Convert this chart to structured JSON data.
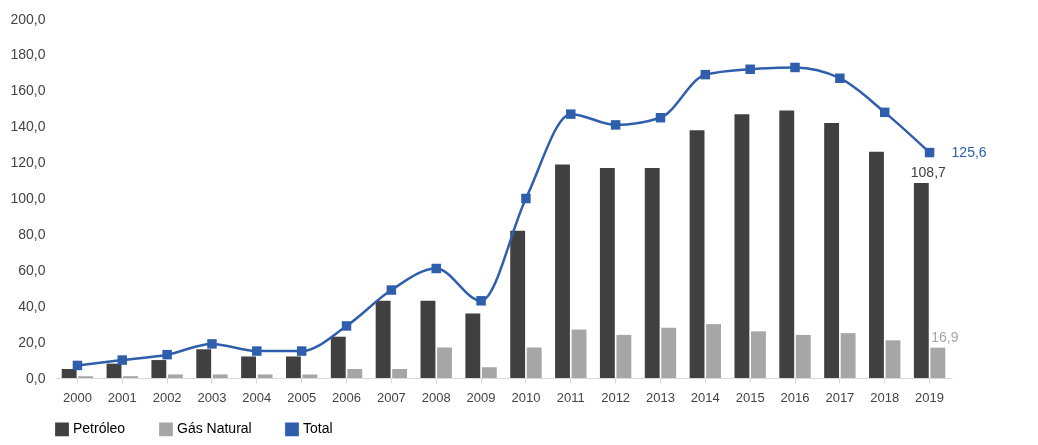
{
  "chart_data": {
    "type": "bar",
    "categories": [
      "2000",
      "2001",
      "2002",
      "2003",
      "2004",
      "2005",
      "2006",
      "2007",
      "2008",
      "2009",
      "2010",
      "2011",
      "2012",
      "2013",
      "2014",
      "2015",
      "2016",
      "2017",
      "2018",
      "2019"
    ],
    "series": [
      {
        "name": "Petróleo",
        "color": "#404040",
        "values": [
          5,
          8,
          10,
          16,
          12,
          12,
          23,
          43,
          43,
          36,
          82,
          119,
          117,
          117,
          138,
          147,
          149,
          142,
          126,
          108.7
        ],
        "value_labels": [
          null,
          null,
          null,
          null,
          null,
          null,
          null,
          null,
          null,
          null,
          null,
          null,
          null,
          null,
          null,
          null,
          null,
          null,
          null,
          "108,7"
        ]
      },
      {
        "name": "Gás Natural",
        "color": "#a6a6a6",
        "values": [
          1,
          1,
          2,
          2,
          2,
          2,
          5,
          5,
          17,
          6,
          17,
          27,
          24,
          28,
          30,
          26,
          24,
          25,
          21,
          16.9
        ],
        "value_labels": [
          null,
          null,
          null,
          null,
          null,
          null,
          null,
          null,
          null,
          null,
          null,
          null,
          null,
          null,
          null,
          null,
          null,
          null,
          null,
          "16,9"
        ]
      },
      {
        "name": "Total",
        "type": "line",
        "color": "#2f5fac",
        "marker": "square",
        "line_style": "solid",
        "values": [
          7,
          10,
          13,
          19,
          15,
          15,
          29,
          49,
          61,
          43,
          100,
          147,
          141,
          145,
          169,
          172,
          173,
          167,
          148,
          125.6
        ],
        "value_labels": [
          null,
          null,
          null,
          null,
          null,
          null,
          null,
          null,
          null,
          null,
          null,
          null,
          null,
          null,
          null,
          null,
          null,
          null,
          null,
          "125,6"
        ]
      }
    ],
    "ylim": [
      0,
      200
    ],
    "yticks": [
      {
        "value": 0,
        "label": "0,0"
      },
      {
        "value": 20,
        "label": "20,0"
      },
      {
        "value": 40,
        "label": "40,0"
      },
      {
        "value": 60,
        "label": "60,0"
      },
      {
        "value": 80,
        "label": "80,0"
      },
      {
        "value": 100,
        "label": "100,0"
      },
      {
        "value": 120,
        "label": "120,0"
      },
      {
        "value": 140,
        "label": "140,0"
      },
      {
        "value": 160,
        "label": "160,0"
      },
      {
        "value": 180,
        "label": "180,0"
      },
      {
        "value": 200,
        "label": "200,0"
      }
    ],
    "grid": false,
    "legend": "bottom"
  }
}
